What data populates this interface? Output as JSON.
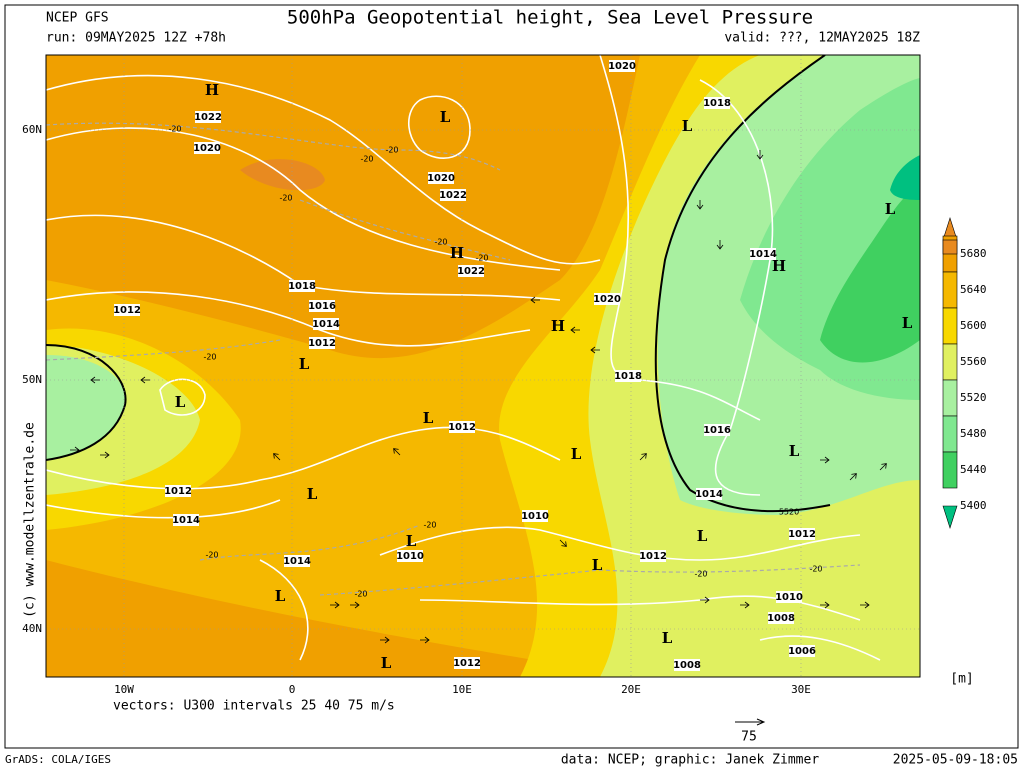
{
  "header": {
    "model": "NCEP GFS",
    "title": "500hPa Geopotential height, Sea Level Pressure",
    "run": "run: 09MAY2025 12Z +78h",
    "valid": "valid: ???, 12MAY2025 18Z"
  },
  "map": {
    "lat_labels": [
      "60N",
      "50N",
      "40N"
    ],
    "lon_labels": [
      "10W",
      "0",
      "10E",
      "20E",
      "30E"
    ],
    "watermark": "(c) www.modellzentrale.de",
    "isobar_labels": [
      "1022",
      "1020",
      "1020",
      "1018",
      "1020",
      "1022",
      "1022",
      "1018",
      "1016",
      "1014",
      "1012",
      "1012",
      "1020",
      "1018",
      "1014",
      "1016",
      "1012",
      "1012",
      "1014",
      "1014",
      "1010",
      "1010",
      "1012",
      "1014",
      "1012",
      "1010",
      "1008",
      "1006",
      "1008",
      "1012"
    ],
    "height_labels": [
      "5520",
      "-20",
      "-20",
      "-20",
      "-20",
      "-20",
      "-20",
      "-20",
      "-20",
      "-20",
      "-20",
      "-20",
      "-20"
    ],
    "pressure_centers": [
      "H",
      "L",
      "H",
      "H",
      "L",
      "L",
      "L",
      "L",
      "L",
      "L",
      "L",
      "L",
      "L",
      "L",
      "L",
      "L",
      "H",
      "L",
      "L",
      "L"
    ]
  },
  "colorbar": {
    "levels": [
      "5680",
      "5640",
      "5600",
      "5560",
      "5520",
      "5480",
      "5440",
      "5400"
    ],
    "unit": "[m]"
  },
  "vectors_note": "vectors: U300 intervals 25 40 75 m/s",
  "vector_scale": "75",
  "footer": {
    "left": "GrADS: COLA/IGES",
    "center": "data: NCEP; graphic: Janek Zimmer",
    "right": "2025-05-09-18:05"
  }
}
